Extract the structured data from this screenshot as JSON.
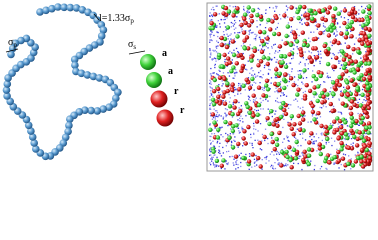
{
  "left_panel": {
    "bond_label": {
      "text": "l=1.33σ",
      "sub": "p"
    },
    "bead_label": {
      "text": "σ",
      "sub": "p"
    }
  },
  "middle_panel": {
    "size_label": {
      "text": "σ",
      "sub": "s"
    },
    "bead_labels": [
      "a",
      "a",
      "r",
      "r"
    ]
  }
}
